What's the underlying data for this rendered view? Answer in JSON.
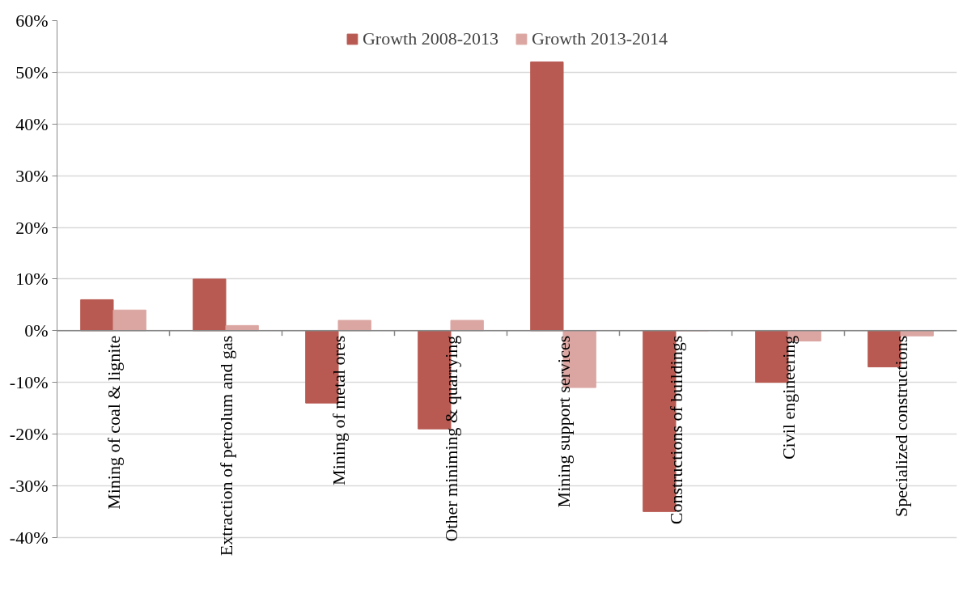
{
  "chart_data": {
    "type": "bar",
    "categories": [
      "Mining of coal & lignite",
      "Extraction of petrolum and gas",
      "Mining of metal ores",
      "Other miniming & quarrying",
      "Mining support services",
      "Constructions of buildings",
      "Civil engineering",
      "Specialized constructions"
    ],
    "series": [
      {
        "name": "Growth 2008-2013",
        "color": "#b85a52",
        "values": [
          6,
          10,
          -14,
          -19,
          52,
          -35,
          -10,
          -7
        ]
      },
      {
        "name": "Growth 2013-2014",
        "color": "#dba6a2",
        "values": [
          4,
          1,
          2,
          2,
          -11,
          0,
          -2,
          -1
        ]
      }
    ],
    "ylim": [
      -40,
      60
    ],
    "yticks": [
      {
        "value": -40,
        "label": "-40%"
      },
      {
        "value": -30,
        "label": "-30%"
      },
      {
        "value": -20,
        "label": "-20%"
      },
      {
        "value": -10,
        "label": "-10%"
      },
      {
        "value": 0,
        "label": "0%"
      },
      {
        "value": 10,
        "label": "10%"
      },
      {
        "value": 20,
        "label": "20%"
      },
      {
        "value": 30,
        "label": "30%"
      },
      {
        "value": 40,
        "label": "40%"
      },
      {
        "value": 50,
        "label": "50%"
      },
      {
        "value": 60,
        "label": "60%"
      }
    ],
    "grid": "y",
    "legend": "top"
  }
}
